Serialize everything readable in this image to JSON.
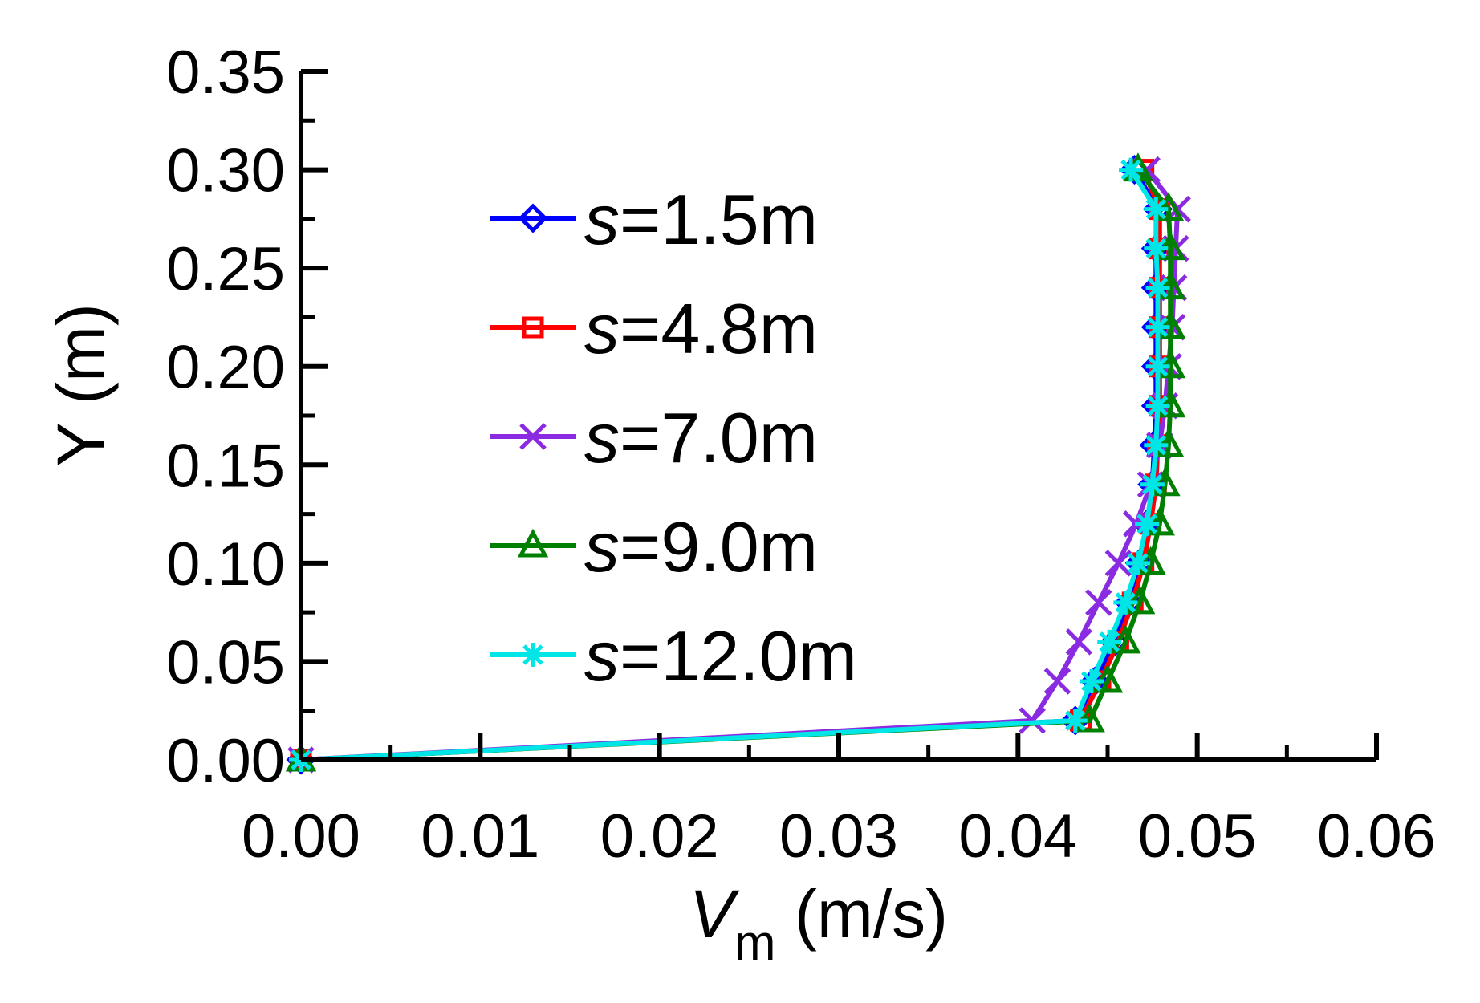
{
  "chart_data": {
    "type": "line",
    "title": "",
    "xlabel": {
      "symbol": "V",
      "subscript": "m",
      "unit": "(m/s)"
    },
    "ylabel": "Y (m)",
    "xlim": [
      0,
      0.06
    ],
    "ylim": [
      0,
      0.35
    ],
    "x_ticks": [
      "0.00",
      "0.01",
      "0.02",
      "0.03",
      "0.04",
      "0.05",
      "0.06"
    ],
    "y_ticks": [
      "0.00",
      "0.05",
      "0.10",
      "0.15",
      "0.20",
      "0.25",
      "0.30",
      "0.35"
    ],
    "grid": false,
    "legend_position": "upper-left-center",
    "series": [
      {
        "name": "s=1.5m",
        "name_italic": "s",
        "name_rest": "=1.5m",
        "color": "#0000ff",
        "marker": "diamond",
        "x": [
          0.0,
          0.0432,
          0.0443,
          0.0454,
          0.0462,
          0.0468,
          0.0472,
          0.0475,
          0.0476,
          0.0477,
          0.0477,
          0.0477,
          0.0477,
          0.0477,
          0.0478,
          0.0478,
          0.0465
        ],
        "y": [
          0.0,
          0.02,
          0.04,
          0.06,
          0.08,
          0.1,
          0.12,
          0.14,
          0.16,
          0.18,
          0.2,
          0.22,
          0.24,
          0.26,
          0.28,
          0.28,
          0.3
        ]
      },
      {
        "name": "s=4.8m",
        "name_italic": "s",
        "name_rest": "=4.8m",
        "color": "#ff0000",
        "marker": "square",
        "x": [
          0.0,
          0.0435,
          0.0446,
          0.0456,
          0.0464,
          0.047,
          0.0474,
          0.0477,
          0.0478,
          0.0479,
          0.0479,
          0.0479,
          0.0479,
          0.0479,
          0.0479,
          0.047
        ],
        "y": [
          0.0,
          0.02,
          0.04,
          0.06,
          0.08,
          0.1,
          0.12,
          0.14,
          0.16,
          0.18,
          0.2,
          0.22,
          0.24,
          0.26,
          0.28,
          0.3
        ]
      },
      {
        "name": "s=7.0m",
        "name_italic": "s",
        "name_rest": "=7.0m",
        "color": "#8a2be2",
        "marker": "x",
        "x": [
          0.0,
          0.0408,
          0.0422,
          0.0434,
          0.0445,
          0.0456,
          0.0466,
          0.0474,
          0.0479,
          0.0482,
          0.0484,
          0.0486,
          0.0487,
          0.0488,
          0.0489,
          0.0472
        ],
        "y": [
          0.0,
          0.02,
          0.04,
          0.06,
          0.08,
          0.1,
          0.12,
          0.14,
          0.16,
          0.18,
          0.2,
          0.22,
          0.24,
          0.26,
          0.28,
          0.3
        ]
      },
      {
        "name": "s=9.0m",
        "name_italic": "s",
        "name_rest": "=9.0m",
        "color": "#008000",
        "marker": "triangle",
        "x": [
          0.0,
          0.044,
          0.045,
          0.046,
          0.0468,
          0.0474,
          0.0479,
          0.0482,
          0.0484,
          0.0485,
          0.0485,
          0.0485,
          0.0485,
          0.0485,
          0.0484,
          0.0467
        ],
        "y": [
          0.0,
          0.02,
          0.04,
          0.06,
          0.08,
          0.1,
          0.12,
          0.14,
          0.16,
          0.18,
          0.2,
          0.22,
          0.24,
          0.26,
          0.28,
          0.3
        ]
      },
      {
        "name": "s=12.0m",
        "name_italic": "s",
        "name_rest": "=12.0m",
        "color": "#00e5e5",
        "marker": "asterisk",
        "x": [
          0.0,
          0.0432,
          0.0441,
          0.0451,
          0.046,
          0.0467,
          0.0472,
          0.0475,
          0.0477,
          0.0478,
          0.0478,
          0.0478,
          0.0478,
          0.0477,
          0.0477,
          0.0463
        ],
        "y": [
          0.0,
          0.02,
          0.04,
          0.06,
          0.08,
          0.1,
          0.12,
          0.14,
          0.16,
          0.18,
          0.2,
          0.22,
          0.24,
          0.26,
          0.28,
          0.3
        ]
      }
    ]
  }
}
